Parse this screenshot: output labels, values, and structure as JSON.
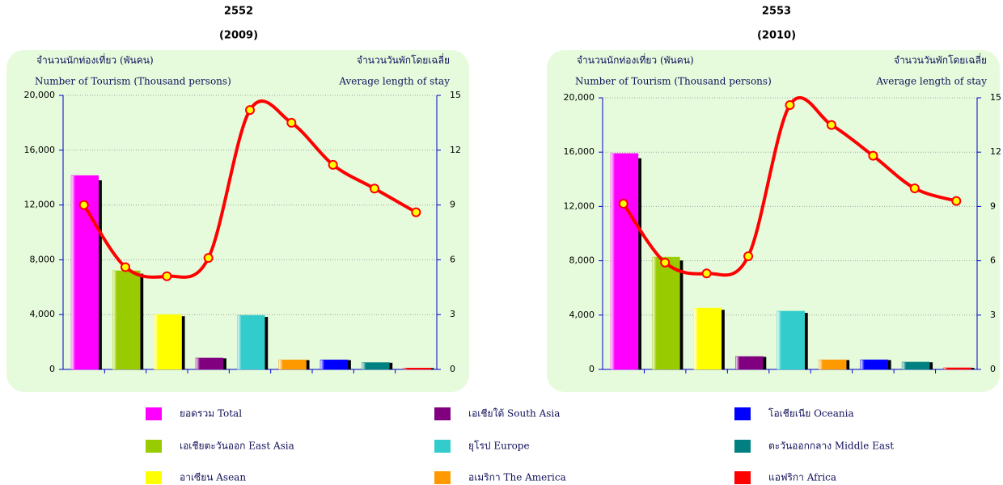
{
  "chart_data": [
    {
      "type": "bar",
      "title": "2552",
      "subtitle": "(2009)",
      "ylabel": [
        "จำนวนนักท่องเที่ยว (พันคน)",
        "Number of Tourism (Thousand persons)"
      ],
      "y2label": [
        "จำนวนวันพักโดยเฉลี่ย",
        "Average length of stay"
      ],
      "ylim": [
        0,
        20000
      ],
      "yticks": [
        0,
        {
          "value": 4000,
          "label": "4,000"
        },
        {
          "value": 8000,
          "label": "8,000"
        },
        {
          "value": 12000,
          "label": "12,000"
        },
        {
          "value": 16000,
          "label": "16,000"
        },
        {
          "value": 20000,
          "label": "20,000"
        }
      ],
      "y2lim": [
        0,
        15
      ],
      "y2ticks": [
        0,
        3,
        6,
        9,
        12,
        15
      ],
      "grid": true,
      "series": [
        {
          "values": [
            14150,
            7200,
            4000,
            830,
            3950,
            700,
            700,
            500,
            100
          ]
        },
        {
          "axis": "y2",
          "type": "line",
          "color": "#ff0000",
          "values": [
            9.0,
            5.6,
            5.1,
            6.1,
            14.2,
            13.5,
            11.2,
            9.9,
            8.6
          ]
        }
      ]
    },
    {
      "type": "bar",
      "title": "2553",
      "subtitle": "(2010)",
      "ylabel": [
        "จำนวนนักท่องเที่ยว (พันคน)",
        "Number of Tourism (Thousand persons)"
      ],
      "y2label": [
        "จำนวนวันพักโดยเฉลี่ย",
        "Average length of stay"
      ],
      "ylim": [
        0,
        20000
      ],
      "yticks": [
        0,
        {
          "value": 4000,
          "label": "4,000"
        },
        {
          "value": 8000,
          "label": "8,000"
        },
        {
          "value": 12000,
          "label": "12,000"
        },
        {
          "value": 16000,
          "label": "16,000"
        },
        {
          "value": 20000,
          "label": "20,000"
        }
      ],
      "y2lim": [
        0,
        15
      ],
      "y2ticks": [
        0,
        3,
        6,
        9,
        12,
        15
      ],
      "grid": true,
      "series": [
        {
          "values": [
            15900,
            8270,
            4520,
            950,
            4290,
            710,
            710,
            540,
            120
          ]
        },
        {
          "axis": "y2",
          "type": "line",
          "color": "#ff0000",
          "values": [
            9.15,
            5.9,
            5.3,
            6.25,
            14.6,
            13.5,
            11.8,
            10.0,
            9.3
          ]
        }
      ]
    }
  ],
  "legend": [
    {
      "label": "ยอดรวม  Total",
      "color": "#ff00ff"
    },
    {
      "label": "เอเชียตะวันออก  East Asia",
      "color": "#99cc00"
    },
    {
      "label": "อาเซียน  Asean",
      "color": "#ffff00"
    },
    {
      "label": "เอเชียใต้  South Asia",
      "color": "#800080"
    },
    {
      "label": "ยุโรป  Europe",
      "color": "#33cccc"
    },
    {
      "label": "อเมริกา  The America",
      "color": "#ff9900"
    },
    {
      "label": "โอเชียเนีย  Oceania",
      "color": "#0000ff"
    },
    {
      "label": "ตะวันออกกลาง  Middle East",
      "color": "#008080"
    },
    {
      "label": "แอฟริกา  Africa",
      "color": "#ff0000"
    }
  ]
}
